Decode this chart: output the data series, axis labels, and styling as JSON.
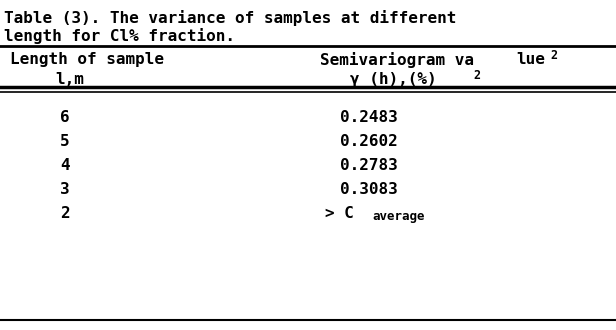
{
  "title_line1": "Table (3). The variance of samples at different",
  "title_line2": "length for Cl% fraction.",
  "col1_header_line1": "Length of sample",
  "col1_header_line2": "l,m",
  "col2_header_line1": "Semivariogram va",
  "col2_header_line1b": "lue",
  "col2_header_line2a": "γ (h),(%)",
  "col2_superscript": "2",
  "bg_color": "#ffffff",
  "text_color": "#000000"
}
